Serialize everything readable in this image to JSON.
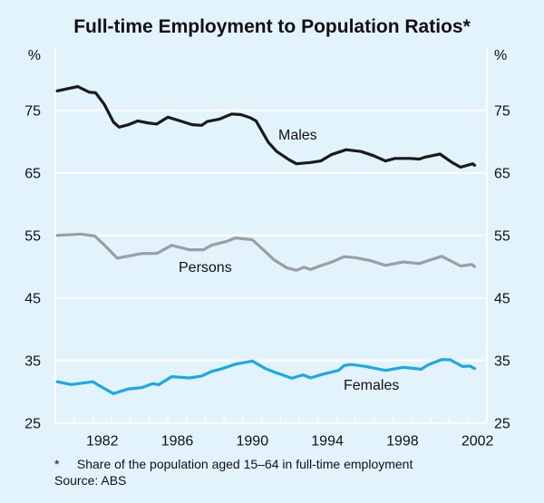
{
  "chart_data": {
    "type": "line",
    "title": "Full-time Employment to Population Ratios*",
    "ylabel_left": "%",
    "ylabel_right": "%",
    "ylim": [
      25,
      85
    ],
    "yticks": [
      25,
      35,
      45,
      55,
      65,
      75
    ],
    "xlim": [
      1980,
      2003
    ],
    "xticks": [
      "1982",
      "1986",
      "1990",
      "1994",
      "1998",
      "2002"
    ],
    "grid": true,
    "footnote": "*     Share of the population aged 15–64 in full-time employment",
    "source": "Source: ABS",
    "background": "#e2f3fc",
    "series": [
      {
        "name": "Males",
        "color": "#1a1a1a",
        "x": [
          1980.1,
          1981.2,
          1981.8,
          1982.15,
          1982.6,
          1983.1,
          1983.4,
          1983.9,
          1984.4,
          1984.9,
          1985.4,
          1986.0,
          1986.65,
          1987.3,
          1987.8,
          1988.1,
          1988.75,
          1989.4,
          1989.9,
          1990.4,
          1990.7,
          1991.35,
          1991.8,
          1992.45,
          1992.85,
          1993.6,
          1994.15,
          1994.7,
          1995.5,
          1996.3,
          1996.95,
          1997.6,
          1998.1,
          1998.9,
          1999.4,
          1999.7,
          2000.5,
          2001.15,
          2001.6,
          2002.25,
          2002.35
        ],
        "y": [
          78.1,
          78.8,
          77.9,
          77.8,
          76.0,
          73.1,
          72.3,
          72.7,
          73.3,
          73.0,
          72.8,
          73.9,
          73.3,
          72.7,
          72.6,
          73.2,
          73.6,
          74.4,
          74.3,
          73.8,
          73.3,
          69.9,
          68.4,
          67.1,
          66.45,
          66.65,
          66.9,
          67.9,
          68.7,
          68.4,
          67.75,
          66.9,
          67.3,
          67.3,
          67.2,
          67.5,
          68.0,
          66.65,
          65.9,
          66.45,
          66.2
        ]
      },
      {
        "name": "Persons",
        "color": "#9a9fa2",
        "x": [
          1980.1,
          1981.35,
          1982.1,
          1982.6,
          1983.3,
          1983.9,
          1984.6,
          1985.4,
          1986.2,
          1987.15,
          1987.9,
          1988.3,
          1989.1,
          1989.6,
          1990.5,
          1991.05,
          1991.65,
          1992.35,
          1992.85,
          1993.25,
          1993.6,
          1994.0,
          1994.7,
          1995.4,
          1995.95,
          1996.8,
          1997.6,
          1998.55,
          1999.4,
          2000.0,
          2000.6,
          2001.6,
          2002.2,
          2002.35
        ],
        "y": [
          55.0,
          55.2,
          54.9,
          53.5,
          51.35,
          51.7,
          52.1,
          52.1,
          53.4,
          52.7,
          52.7,
          53.4,
          54.0,
          54.6,
          54.3,
          52.8,
          51.1,
          49.8,
          49.4,
          49.9,
          49.55,
          50.0,
          50.7,
          51.6,
          51.45,
          50.95,
          50.2,
          50.75,
          50.5,
          51.1,
          51.65,
          50.1,
          50.35,
          50.0
        ]
      },
      {
        "name": "Females",
        "color": "#1ca8e6",
        "x": [
          1980.1,
          1980.85,
          1982.0,
          1982.45,
          1983.1,
          1983.9,
          1984.6,
          1985.2,
          1985.5,
          1986.2,
          1987.15,
          1987.8,
          1988.3,
          1988.9,
          1989.6,
          1990.5,
          1991.2,
          1991.7,
          1992.0,
          1992.6,
          1993.2,
          1993.6,
          1994.2,
          1995.1,
          1995.4,
          1995.8,
          1996.6,
          1997.6,
          1998.55,
          1999.5,
          1999.9,
          2000.6,
          2001.05,
          2001.7,
          2002.1,
          2002.35
        ],
        "y": [
          31.6,
          31.15,
          31.6,
          30.8,
          29.7,
          30.45,
          30.65,
          31.3,
          31.1,
          32.4,
          32.2,
          32.5,
          33.2,
          33.7,
          34.4,
          34.9,
          33.7,
          33.1,
          32.8,
          32.15,
          32.7,
          32.2,
          32.75,
          33.4,
          34.2,
          34.35,
          34.0,
          33.4,
          33.9,
          33.6,
          34.35,
          35.15,
          35.1,
          34.05,
          34.1,
          33.7
        ]
      }
    ]
  }
}
